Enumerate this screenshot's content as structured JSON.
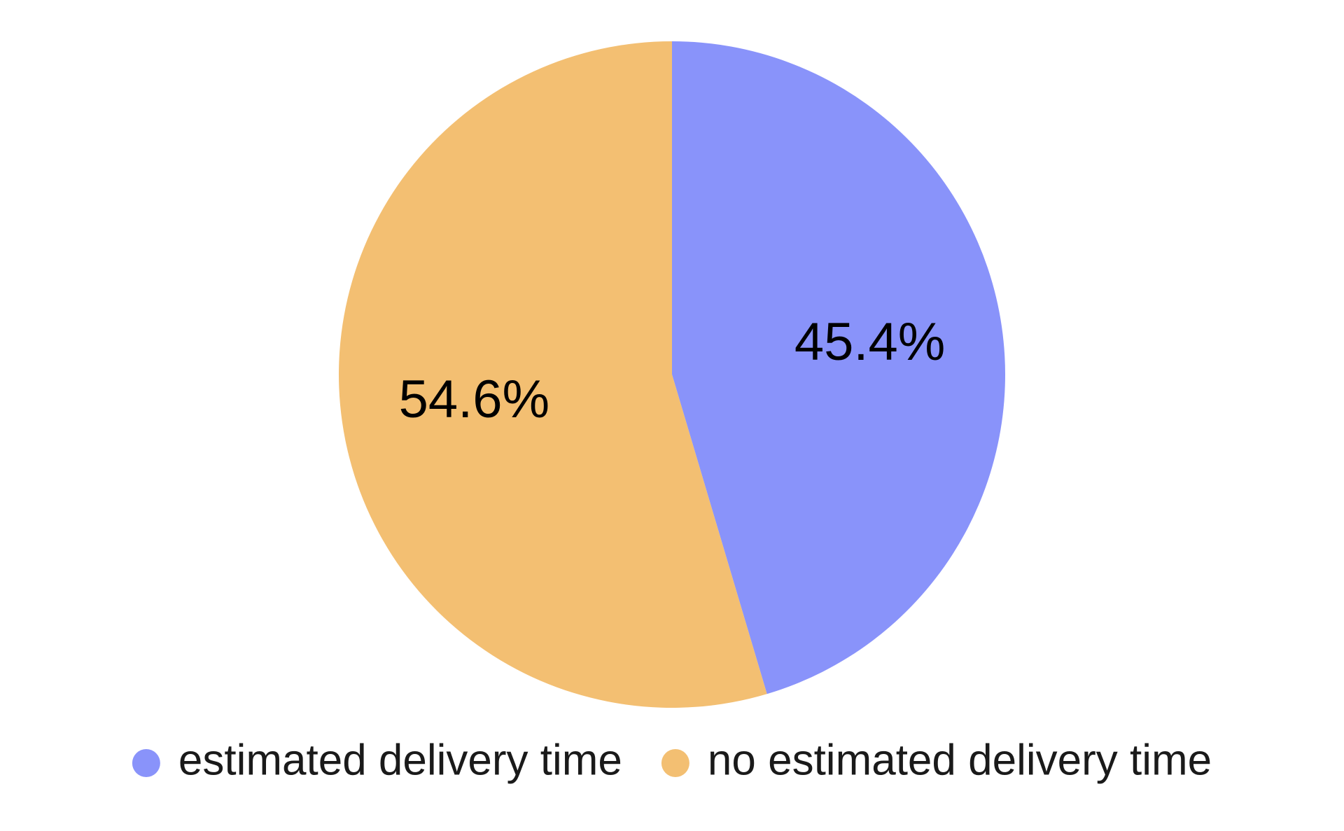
{
  "chart_data": {
    "type": "pie",
    "categories": [
      "estimated delivery time",
      "no estimated delivery time"
    ],
    "values": [
      45.4,
      54.6
    ],
    "value_labels": [
      "45.4%",
      "54.6%"
    ],
    "colors": [
      "#8993fa",
      "#f3bf72"
    ],
    "legend": "bottom"
  }
}
